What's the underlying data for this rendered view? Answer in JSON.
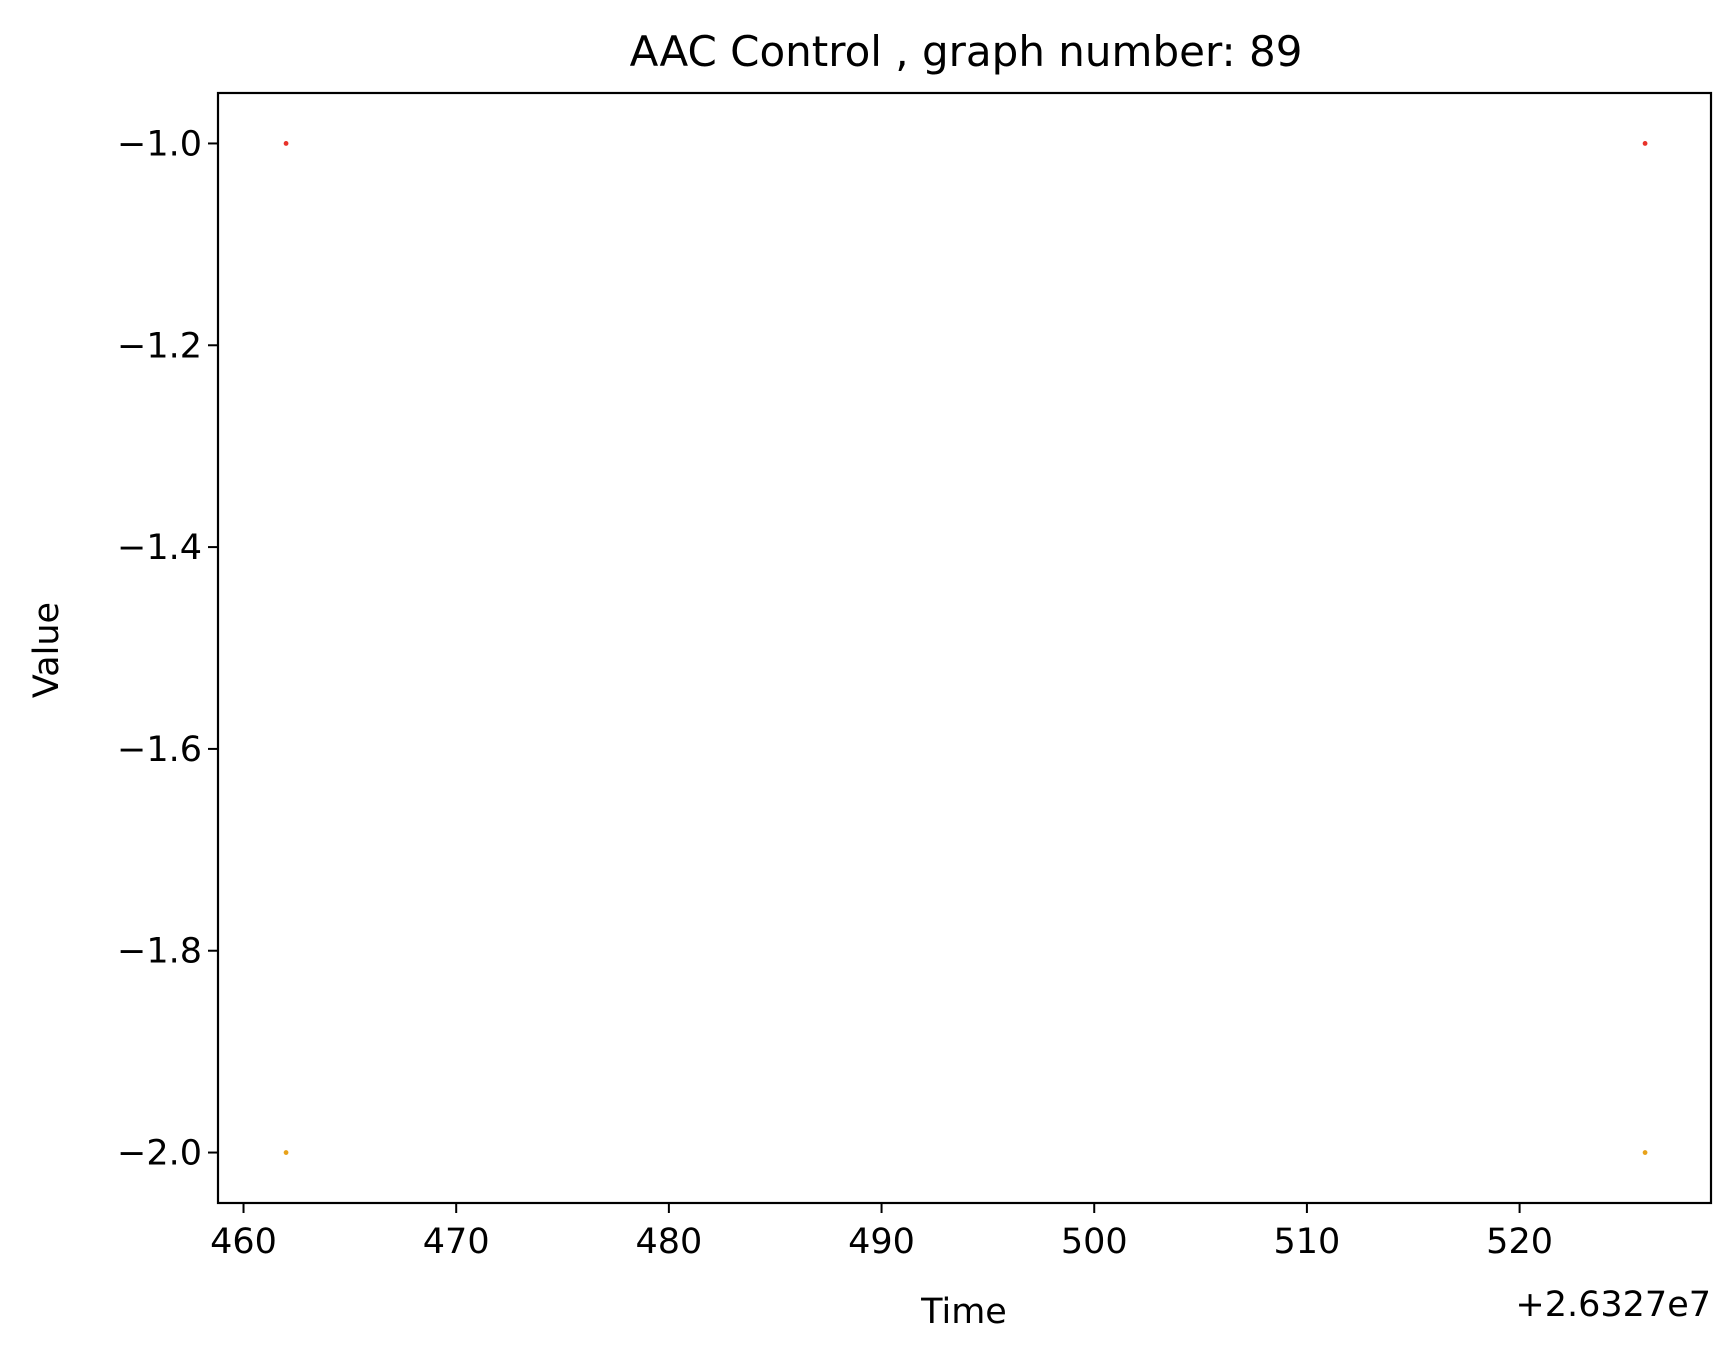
{
  "chart_data": {
    "type": "scatter",
    "title": "AAC Control , graph number: 89",
    "xlabel": "Time",
    "ylabel": "Value",
    "x_offset_label": "+2.6327e7",
    "xlim": [
      458.8,
      529.0
    ],
    "ylim": [
      -2.05,
      -0.95
    ],
    "xticks": [
      460,
      470,
      480,
      490,
      500,
      510,
      520
    ],
    "xtick_labels": [
      "460",
      "470",
      "480",
      "490",
      "500",
      "510",
      "520"
    ],
    "yticks": [
      -1.0,
      -1.2,
      -1.4,
      -1.6,
      -1.8,
      -2.0
    ],
    "ytick_labels": [
      "−1.0",
      "−1.2",
      "−1.4",
      "−1.6",
      "−1.8",
      "−2.0"
    ],
    "grid": false,
    "series": [
      {
        "color": "#e8322a",
        "points": [
          {
            "x": 462.0,
            "y": -1.0
          },
          {
            "x": 525.9,
            "y": -1.0
          }
        ]
      },
      {
        "color": "#e8a21a",
        "points": [
          {
            "x": 462.0,
            "y": -2.0
          },
          {
            "x": 525.9,
            "y": -2.0
          }
        ]
      }
    ]
  }
}
